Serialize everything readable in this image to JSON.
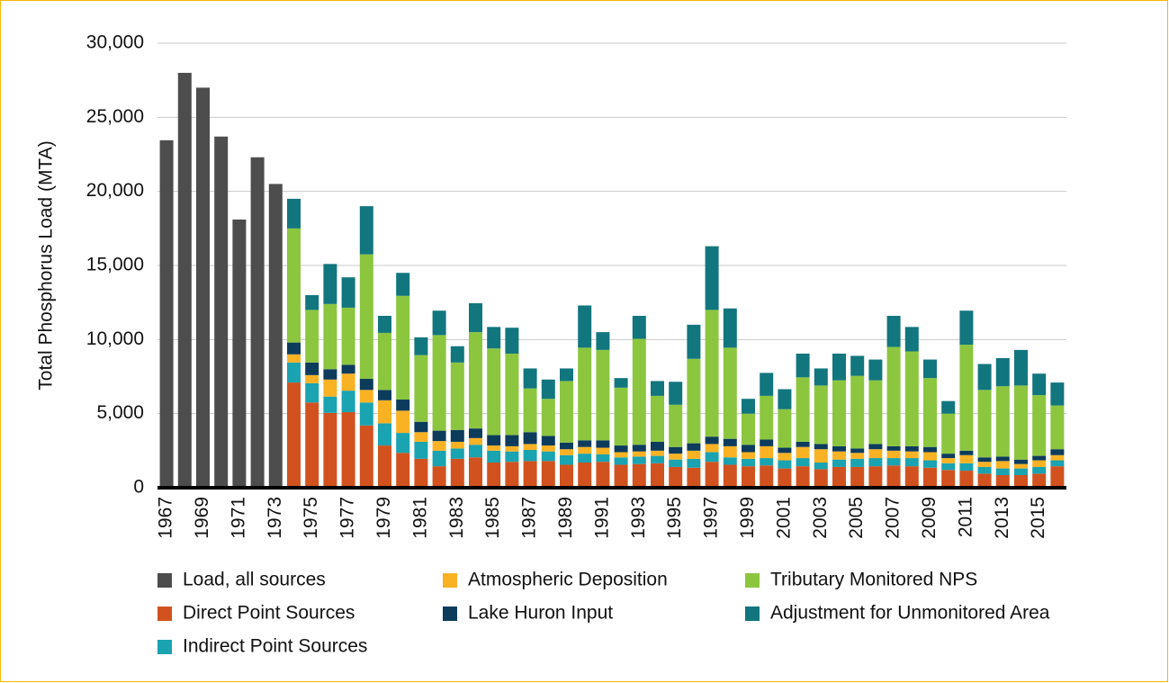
{
  "chart_data": {
    "type": "stacked-bar",
    "y_label": "Total Phosphorus Load (MTA)",
    "categories": [
      "1967",
      null,
      "1969",
      null,
      "1971",
      null,
      "1973",
      null,
      "1975",
      null,
      "1977",
      null,
      "1979",
      null,
      "1981",
      null,
      "1983",
      null,
      "1985",
      null,
      "1987",
      null,
      "1989",
      null,
      "1991",
      null,
      "1993",
      null,
      "1995",
      null,
      "1997",
      null,
      "1999",
      null,
      "2001",
      null,
      "2003",
      null,
      "2005",
      null,
      "2007",
      null,
      "2009",
      null,
      "2011",
      null,
      "2013",
      null,
      "2015",
      null
    ],
    "ylim": [
      0,
      30000
    ],
    "yticks": [
      0,
      {
        "value": 5000,
        "label": "5,000"
      },
      {
        "value": 10000,
        "label": "10,000"
      },
      {
        "value": 15000,
        "label": "15,000"
      },
      {
        "value": 20000,
        "label": "20,000"
      },
      {
        "value": 25000,
        "label": "25,000"
      },
      {
        "value": 30000,
        "label": "30,000"
      }
    ],
    "grid": true,
    "series": [
      {
        "name": "Load, all sources",
        "color": "#4d4d4d",
        "values": [
          23450,
          28000,
          27000,
          23700,
          18100,
          22300,
          20500,
          null,
          null,
          null,
          null,
          null,
          null,
          null,
          null,
          null,
          null,
          null,
          null,
          null,
          null,
          null,
          null,
          null,
          null,
          null,
          null,
          null,
          null,
          null,
          null,
          null,
          null,
          null,
          null,
          null,
          null,
          null,
          null,
          null,
          null,
          null,
          null,
          null,
          null,
          null,
          null,
          null,
          null,
          null
        ]
      },
      {
        "name": "Direct Point Sources",
        "color": "#d2521f",
        "values": [
          null,
          null,
          null,
          null,
          null,
          null,
          null,
          7100,
          5750,
          5050,
          5100,
          4200,
          2850,
          2350,
          1950,
          1450,
          1950,
          2050,
          1700,
          1750,
          1800,
          1800,
          1550,
          1700,
          1750,
          1550,
          1600,
          1650,
          1400,
          1350,
          1750,
          1550,
          1450,
          1500,
          1300,
          1450,
          1250,
          1400,
          1400,
          1450,
          1500,
          1450,
          1350,
          1200,
          1150,
          950,
          850,
          850,
          950,
          1450
        ]
      },
      {
        "name": "Indirect Point Sources",
        "color": "#1aa3b0",
        "values": [
          null,
          null,
          null,
          null,
          null,
          null,
          null,
          1350,
          1300,
          1100,
          1450,
          1550,
          1500,
          1350,
          1150,
          1050,
          700,
          850,
          800,
          700,
          750,
          650,
          650,
          600,
          500,
          500,
          500,
          500,
          500,
          600,
          650,
          500,
          500,
          500,
          550,
          550,
          450,
          500,
          550,
          550,
          500,
          550,
          500,
          450,
          500,
          450,
          450,
          450,
          450,
          400
        ]
      },
      {
        "name": "Atmospheric Deposition",
        "color": "#f9b224",
        "values": [
          null,
          null,
          null,
          null,
          null,
          null,
          null,
          550,
          550,
          1150,
          1150,
          850,
          1550,
          1500,
          650,
          650,
          450,
          450,
          350,
          350,
          400,
          400,
          400,
          450,
          450,
          350,
          350,
          350,
          400,
          550,
          550,
          750,
          450,
          800,
          500,
          750,
          900,
          550,
          400,
          600,
          500,
          450,
          550,
          350,
          550,
          350,
          500,
          300,
          450,
          350
        ]
      },
      {
        "name": "Lake Huron Input",
        "color": "#0d3b5c",
        "values": [
          null,
          null,
          null,
          null,
          null,
          null,
          null,
          800,
          850,
          700,
          600,
          750,
          700,
          750,
          700,
          700,
          800,
          650,
          700,
          750,
          800,
          650,
          450,
          450,
          500,
          450,
          450,
          600,
          450,
          500,
          500,
          500,
          500,
          450,
          350,
          350,
          350,
          350,
          300,
          350,
          300,
          350,
          350,
          300,
          300,
          300,
          300,
          300,
          300,
          400
        ]
      },
      {
        "name": "Tributary Monitored NPS",
        "color": "#8cc63f",
        "values": [
          null,
          null,
          null,
          null,
          null,
          null,
          null,
          7700,
          3550,
          4400,
          3850,
          8400,
          3850,
          7000,
          4500,
          6450,
          4550,
          6500,
          5850,
          5500,
          2950,
          2500,
          4150,
          6250,
          6100,
          3900,
          7150,
          3100,
          2850,
          5700,
          8550,
          6150,
          2100,
          2950,
          2600,
          4350,
          3950,
          4450,
          4900,
          4300,
          6700,
          6400,
          4650,
          2700,
          7150,
          4550,
          4750,
          5000,
          4100,
          2950
        ]
      },
      {
        "name": "Adjustment for Unmonitored Area",
        "color": "#12767e",
        "values": [
          null,
          null,
          null,
          null,
          null,
          null,
          null,
          2000,
          1000,
          2700,
          2050,
          3250,
          1150,
          1550,
          1200,
          1650,
          1100,
          1950,
          1450,
          1750,
          1350,
          1300,
          850,
          2850,
          1200,
          650,
          1550,
          1000,
          1550,
          2300,
          4300,
          2650,
          1000,
          1550,
          1350,
          1600,
          1150,
          1800,
          1350,
          1400,
          2100,
          1650,
          1250,
          850,
          2300,
          1750,
          1900,
          2400,
          1450,
          1550
        ]
      }
    ]
  }
}
